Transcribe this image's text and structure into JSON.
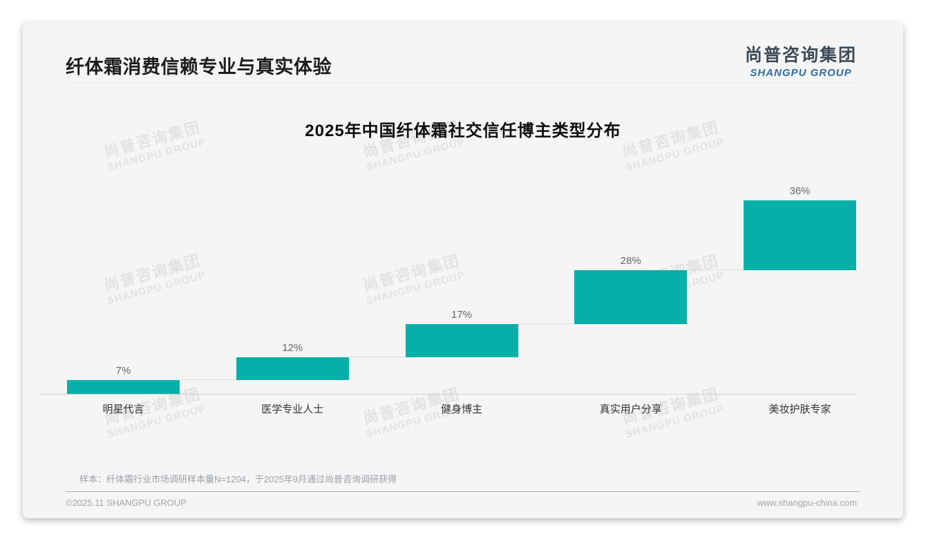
{
  "page": {
    "title": "纤体霜消费信赖专业与真实体验",
    "logo": {
      "cn": "尚普咨询集团",
      "en": "SHANGPU GROUP"
    },
    "watermark": {
      "cn": "尚普咨询集团",
      "en": "SHANGPU GROUP"
    },
    "note": "样本：纤体霜行业市场调研样本量N=1204，于2025年9月通过尚普咨询调研获得",
    "footer": {
      "left": "©2025.11 SHANGPU GROUP",
      "right": "www.shangpu-china.com"
    }
  },
  "chart_data": {
    "type": "bar",
    "variant": "waterfall-step",
    "title": "2025年中国纤体霜社交信任博主类型分布",
    "categories": [
      "明星代言",
      "医学专业人士",
      "健身博主",
      "真实用户分享",
      "美妆护肤专家"
    ],
    "values": [
      7,
      12,
      17,
      28,
      36
    ],
    "value_labels": [
      "7%",
      "12%",
      "17%",
      "28%",
      "36%"
    ],
    "unit": "%",
    "ylim": [
      0,
      100
    ],
    "grid": false,
    "legend": false,
    "bar_color": "#06b0a9",
    "connector_color": "#dcdcdc",
    "baseline_color": "#cfcfcf"
  },
  "colors": {
    "accent_teal": "#06b0a9",
    "logo_blue": "#2e6da4",
    "card_bg": "#f5f5f5",
    "footer_divider": "#9db0c4"
  }
}
